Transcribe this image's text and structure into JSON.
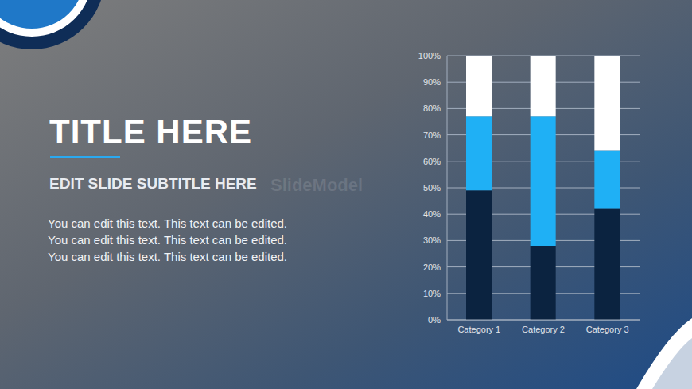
{
  "slide": {
    "title": "TITLE HERE",
    "subtitle": "EDIT SLIDE SUBTITLE HERE",
    "body": "You can edit this text. This text can be edited. You can edit this text. This text can be edited. You can edit this text. This text can be edited.",
    "watermark": "SlideModel"
  },
  "chart_data": {
    "type": "bar",
    "stacked": true,
    "grid": true,
    "categories": [
      "Category 1",
      "Category 2",
      "Category 3"
    ],
    "series": [
      {
        "color": "#0b2340",
        "values": [
          49,
          28,
          42
        ]
      },
      {
        "color": "#1fb0f5",
        "values": [
          28,
          49,
          22
        ]
      },
      {
        "color": "#ffffff",
        "values": [
          23,
          23,
          36
        ]
      }
    ],
    "ylim": [
      0,
      100
    ],
    "yticks": [
      {
        "value": 0,
        "label": "0%"
      },
      {
        "value": 10,
        "label": "10%"
      },
      {
        "value": 20,
        "label": "20%"
      },
      {
        "value": 30,
        "label": "30%"
      },
      {
        "value": 40,
        "label": "40%"
      },
      {
        "value": 50,
        "label": "50%"
      },
      {
        "value": 60,
        "label": "60%"
      },
      {
        "value": 70,
        "label": "70%"
      },
      {
        "value": 80,
        "label": "80%"
      },
      {
        "value": 90,
        "label": "90%"
      },
      {
        "value": 100,
        "label": "100%"
      }
    ]
  }
}
